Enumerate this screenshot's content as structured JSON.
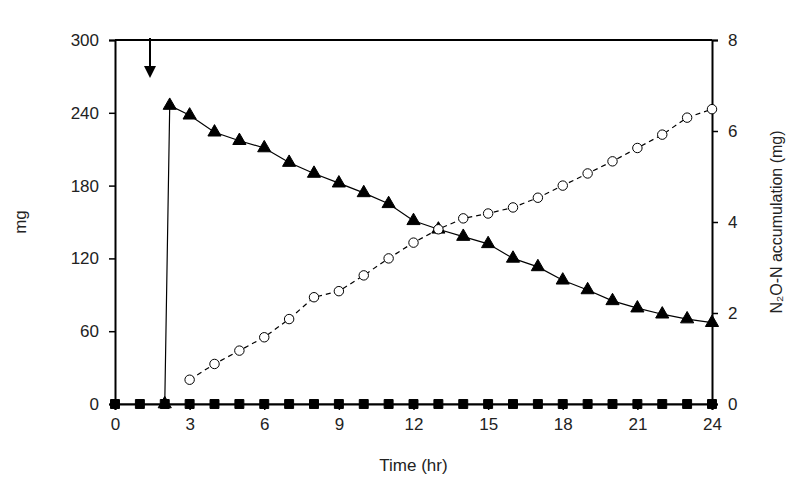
{
  "chart_data": {
    "type": "line",
    "xlabel": "Time (hr)",
    "ylabel": "mg",
    "y2label": "N₂O-N accumulation (mg)",
    "xlim": [
      0,
      24
    ],
    "xticks": [
      0,
      3,
      6,
      9,
      12,
      15,
      18,
      21,
      24
    ],
    "ylim": [
      0,
      300
    ],
    "yticks": [
      0,
      60,
      120,
      180,
      240,
      300
    ],
    "y2lim": [
      0,
      8
    ],
    "y2ticks": [
      0,
      2,
      4,
      6,
      8
    ],
    "grid": false,
    "series": [
      {
        "color": "#000000",
        "marker": "triangle",
        "line_style": "solid",
        "x": [
          2,
          2.2,
          3,
          4,
          5,
          6,
          7,
          8,
          9,
          10,
          11,
          12,
          13,
          14,
          15,
          16,
          17,
          18,
          19,
          20,
          21,
          22,
          23,
          24
        ],
        "values": [
          0,
          246,
          238,
          224,
          217,
          211,
          199,
          190,
          182,
          174,
          165,
          151,
          144,
          138,
          132,
          120,
          113,
          102,
          94,
          85,
          79,
          74,
          70,
          67
        ]
      },
      {
        "color": "#000000",
        "marker": "open-circle",
        "line_style": "dashed",
        "x": [
          3,
          4,
          5,
          6,
          7,
          8,
          9,
          10,
          11,
          12,
          13,
          14,
          15,
          16,
          17,
          18,
          19,
          20,
          21,
          22,
          23,
          24
        ],
        "values": [
          20,
          33,
          44,
          55,
          70,
          88,
          93,
          106,
          120,
          133,
          144,
          153,
          157,
          162,
          170,
          180,
          190,
          200,
          211,
          222,
          236,
          243
        ]
      },
      {
        "color": "#000000",
        "marker": "square",
        "line_style": "solid",
        "axis": "y2",
        "x": [
          0,
          1,
          2,
          3,
          4,
          5,
          6,
          7,
          8,
          9,
          10,
          11,
          12,
          13,
          14,
          15,
          16,
          17,
          18,
          19,
          20,
          21,
          22,
          23,
          24
        ],
        "values": [
          0,
          0,
          0,
          0,
          0,
          0,
          0,
          0,
          0,
          0,
          0,
          0,
          0,
          0,
          0,
          0,
          0,
          0,
          0,
          0,
          0,
          0,
          0,
          0,
          0
        ]
      }
    ]
  }
}
